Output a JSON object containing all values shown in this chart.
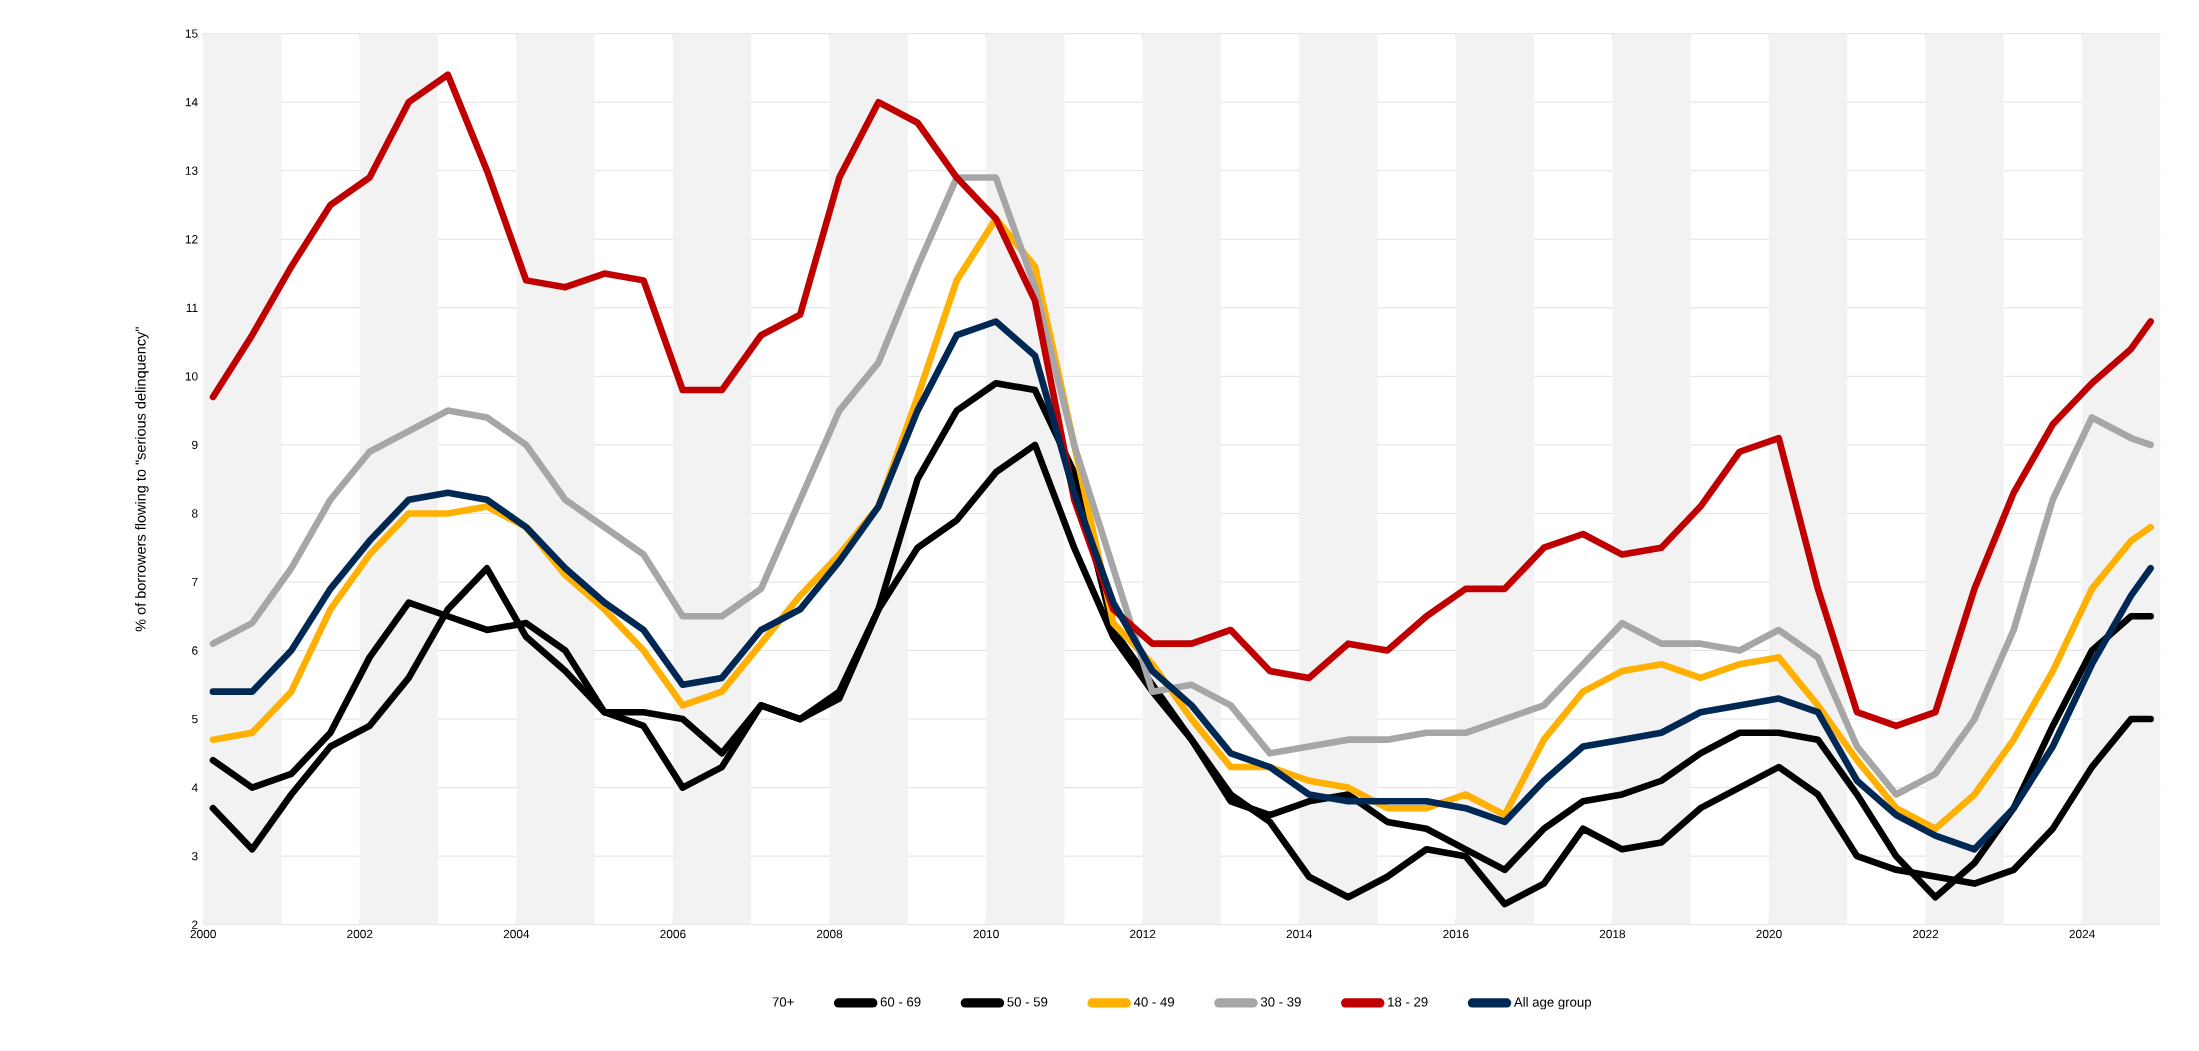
{
  "chart_data": {
    "type": "line",
    "ylabel": "% of borrowers flowing to \"serious delinquency\"",
    "legend_title": "70+",
    "x": [
      2000.125,
      2000.625,
      2001.125,
      2001.625,
      2002.125,
      2002.625,
      2003.125,
      2003.625,
      2004.125,
      2004.625,
      2005.125,
      2005.625,
      2006.125,
      2006.625,
      2007.125,
      2007.625,
      2008.125,
      2008.625,
      2009.125,
      2009.625,
      2010.125,
      2010.625,
      2011.125,
      2011.625,
      2012.125,
      2012.625,
      2013.125,
      2013.625,
      2014.125,
      2014.625,
      2015.125,
      2015.625,
      2016.125,
      2016.625,
      2017.125,
      2017.625,
      2018.125,
      2018.625,
      2019.125,
      2019.625,
      2020.125,
      2020.625,
      2021.125,
      2021.625,
      2022.125,
      2022.625,
      2023.125,
      2023.625,
      2024.125,
      2024.625,
      2024.875
    ],
    "series": [
      {
        "name": "60 - 69",
        "color": "#000000",
        "values": [
          3.7,
          3.1,
          3.9,
          4.6,
          4.9,
          5.6,
          6.6,
          7.2,
          6.2,
          5.7,
          5.1,
          4.9,
          4.0,
          4.3,
          5.2,
          5.0,
          5.4,
          6.6,
          7.5,
          7.9,
          8.6,
          9.0,
          7.5,
          6.2,
          5.4,
          4.7,
          3.9,
          3.5,
          2.7,
          2.4,
          2.7,
          3.1,
          3.0,
          2.3,
          2.6,
          3.4,
          3.1,
          3.2,
          3.7,
          4.0,
          4.3,
          3.9,
          3.0,
          2.8,
          2.7,
          2.6,
          2.8,
          3.4,
          4.3,
          5.0,
          5.0
        ]
      },
      {
        "name": "50 - 59",
        "color": "#000000",
        "values": [
          4.4,
          4.0,
          4.2,
          4.8,
          5.9,
          6.7,
          6.5,
          6.3,
          6.4,
          6.0,
          5.1,
          5.1,
          5.0,
          4.5,
          5.2,
          5.0,
          5.3,
          6.6,
          8.5,
          9.5,
          9.9,
          9.8,
          8.6,
          6.3,
          5.5,
          4.7,
          3.8,
          3.6,
          3.8,
          3.9,
          3.5,
          3.4,
          3.1,
          2.8,
          3.4,
          3.8,
          3.9,
          4.1,
          4.5,
          4.8,
          4.8,
          4.7,
          3.9,
          3.0,
          2.4,
          2.9,
          3.7,
          4.9,
          6.0,
          6.5,
          6.5
        ]
      },
      {
        "name": "40 - 49",
        "color": "#ffb000",
        "values": [
          4.7,
          4.8,
          5.4,
          6.6,
          7.4,
          8.0,
          8.0,
          8.1,
          7.8,
          7.1,
          6.6,
          6.0,
          5.2,
          5.4,
          6.1,
          6.8,
          7.4,
          8.1,
          9.7,
          11.4,
          12.3,
          11.6,
          9.0,
          6.4,
          5.8,
          5.0,
          4.3,
          4.3,
          4.1,
          4.0,
          3.7,
          3.7,
          3.9,
          3.6,
          4.7,
          5.4,
          5.7,
          5.8,
          5.6,
          5.8,
          5.9,
          5.2,
          4.4,
          3.7,
          3.4,
          3.9,
          4.7,
          5.7,
          6.9,
          7.6,
          7.8
        ]
      },
      {
        "name": "30 - 39",
        "color": "#a6a6a6",
        "values": [
          6.1,
          6.4,
          7.2,
          8.2,
          8.9,
          9.2,
          9.5,
          9.4,
          9.0,
          8.2,
          7.8,
          7.4,
          6.5,
          6.5,
          6.9,
          8.2,
          9.5,
          10.2,
          11.6,
          12.9,
          12.9,
          11.3,
          9.0,
          7.2,
          5.4,
          5.5,
          5.2,
          4.5,
          4.6,
          4.7,
          4.7,
          4.8,
          4.8,
          5.0,
          5.2,
          5.8,
          6.4,
          6.1,
          6.1,
          6.0,
          6.3,
          5.9,
          4.6,
          3.9,
          4.2,
          5.0,
          6.3,
          8.2,
          9.4,
          9.1,
          9.0
        ]
      },
      {
        "name": "18 - 29",
        "color": "#c00000",
        "values": [
          9.7,
          10.6,
          11.6,
          12.5,
          12.9,
          14.0,
          14.4,
          13.0,
          11.4,
          11.3,
          11.5,
          11.4,
          9.8,
          9.8,
          10.6,
          10.9,
          12.9,
          14.0,
          13.7,
          12.9,
          12.3,
          11.1,
          8.2,
          6.6,
          6.1,
          6.1,
          6.3,
          5.7,
          5.6,
          6.1,
          6.0,
          6.5,
          6.9,
          6.9,
          7.5,
          7.7,
          7.4,
          7.5,
          8.1,
          8.9,
          9.1,
          6.9,
          5.1,
          4.9,
          5.1,
          6.9,
          8.3,
          9.3,
          9.9,
          10.4,
          10.8
        ]
      },
      {
        "name": "All age group",
        "color": "#002855",
        "values": [
          5.4,
          5.4,
          6.0,
          6.9,
          7.6,
          8.2,
          8.3,
          8.2,
          7.8,
          7.2,
          6.7,
          6.3,
          5.5,
          5.6,
          6.3,
          6.6,
          7.3,
          8.1,
          9.5,
          10.6,
          10.8,
          10.3,
          8.3,
          6.7,
          5.7,
          5.2,
          4.5,
          4.3,
          3.9,
          3.8,
          3.8,
          3.8,
          3.7,
          3.5,
          4.1,
          4.6,
          4.7,
          4.8,
          5.1,
          5.2,
          5.3,
          5.1,
          4.1,
          3.6,
          3.3,
          3.1,
          3.7,
          4.6,
          5.8,
          6.8,
          7.2
        ]
      }
    ],
    "xlim": [
      2000,
      2025
    ],
    "xticks": [
      2000,
      2002,
      2004,
      2006,
      2008,
      2010,
      2012,
      2014,
      2016,
      2018,
      2020,
      2022,
      2024
    ],
    "ylim": [
      2,
      15
    ],
    "yticks": [
      2,
      3,
      4,
      5,
      6,
      7,
      8,
      9,
      10,
      11,
      12,
      13,
      14,
      15
    ],
    "bands": [
      {
        "axis": "x",
        "from": 2000,
        "to": 2001,
        "color": "#f2f2f2"
      },
      {
        "axis": "x",
        "from": 2002,
        "to": 2003,
        "color": "#f2f2f2"
      },
      {
        "axis": "x",
        "from": 2004,
        "to": 2005,
        "color": "#f2f2f2"
      },
      {
        "axis": "x",
        "from": 2006,
        "to": 2007,
        "color": "#f2f2f2"
      },
      {
        "axis": "x",
        "from": 2008,
        "to": 2009,
        "color": "#f2f2f2"
      },
      {
        "axis": "x",
        "from": 2010,
        "to": 2011,
        "color": "#f2f2f2"
      },
      {
        "axis": "x",
        "from": 2012,
        "to": 2013,
        "color": "#f2f2f2"
      },
      {
        "axis": "x",
        "from": 2014,
        "to": 2015,
        "color": "#f2f2f2"
      },
      {
        "axis": "x",
        "from": 2016,
        "to": 2017,
        "color": "#f2f2f2"
      },
      {
        "axis": "x",
        "from": 2018,
        "to": 2019,
        "color": "#f2f2f2"
      },
      {
        "axis": "x",
        "from": 2020,
        "to": 2021,
        "color": "#f2f2f2"
      },
      {
        "axis": "x",
        "from": 2022,
        "to": 2023,
        "color": "#f2f2f2"
      },
      {
        "axis": "x",
        "from": 2024,
        "to": 2025,
        "color": "#f2f2f2"
      }
    ],
    "grid": "y",
    "legend": "bottom",
    "marker": "none",
    "line_style": "solid"
  }
}
